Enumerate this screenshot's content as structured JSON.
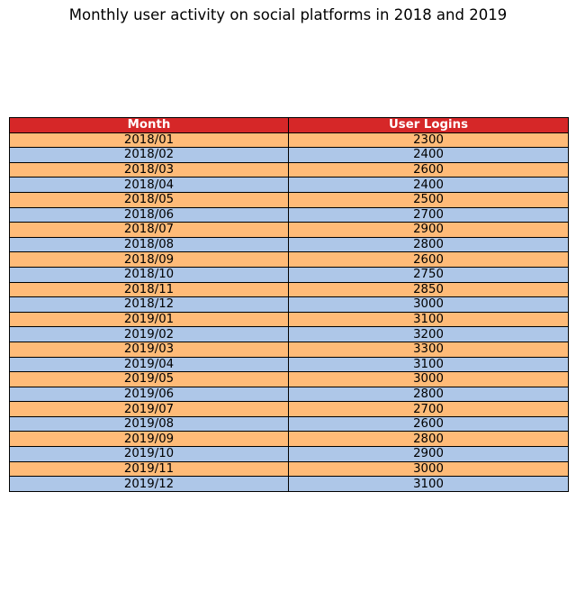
{
  "chart_data": {
    "type": "table",
    "title": "Monthly user activity on social platforms in 2018 and 2019",
    "columns": [
      "Month",
      "User Logins"
    ],
    "rows": [
      [
        "2018/01",
        "2300"
      ],
      [
        "2018/02",
        "2400"
      ],
      [
        "2018/03",
        "2600"
      ],
      [
        "2018/04",
        "2400"
      ],
      [
        "2018/05",
        "2500"
      ],
      [
        "2018/06",
        "2700"
      ],
      [
        "2018/07",
        "2900"
      ],
      [
        "2018/08",
        "2800"
      ],
      [
        "2018/09",
        "2600"
      ],
      [
        "2018/10",
        "2750"
      ],
      [
        "2018/11",
        "2850"
      ],
      [
        "2018/12",
        "3000"
      ],
      [
        "2019/01",
        "3100"
      ],
      [
        "2019/02",
        "3200"
      ],
      [
        "2019/03",
        "3300"
      ],
      [
        "2019/04",
        "3100"
      ],
      [
        "2019/05",
        "3000"
      ],
      [
        "2019/06",
        "2800"
      ],
      [
        "2019/07",
        "2700"
      ],
      [
        "2019/08",
        "2600"
      ],
      [
        "2019/09",
        "2800"
      ],
      [
        "2019/10",
        "2900"
      ],
      [
        "2019/11",
        "3000"
      ],
      [
        "2019/12",
        "3100"
      ]
    ],
    "colors": {
      "header_background": "#d62728",
      "header_text": "#ffffff",
      "row_odd": "#ffbb78",
      "row_even": "#aec7e8",
      "border": "#000000"
    }
  }
}
